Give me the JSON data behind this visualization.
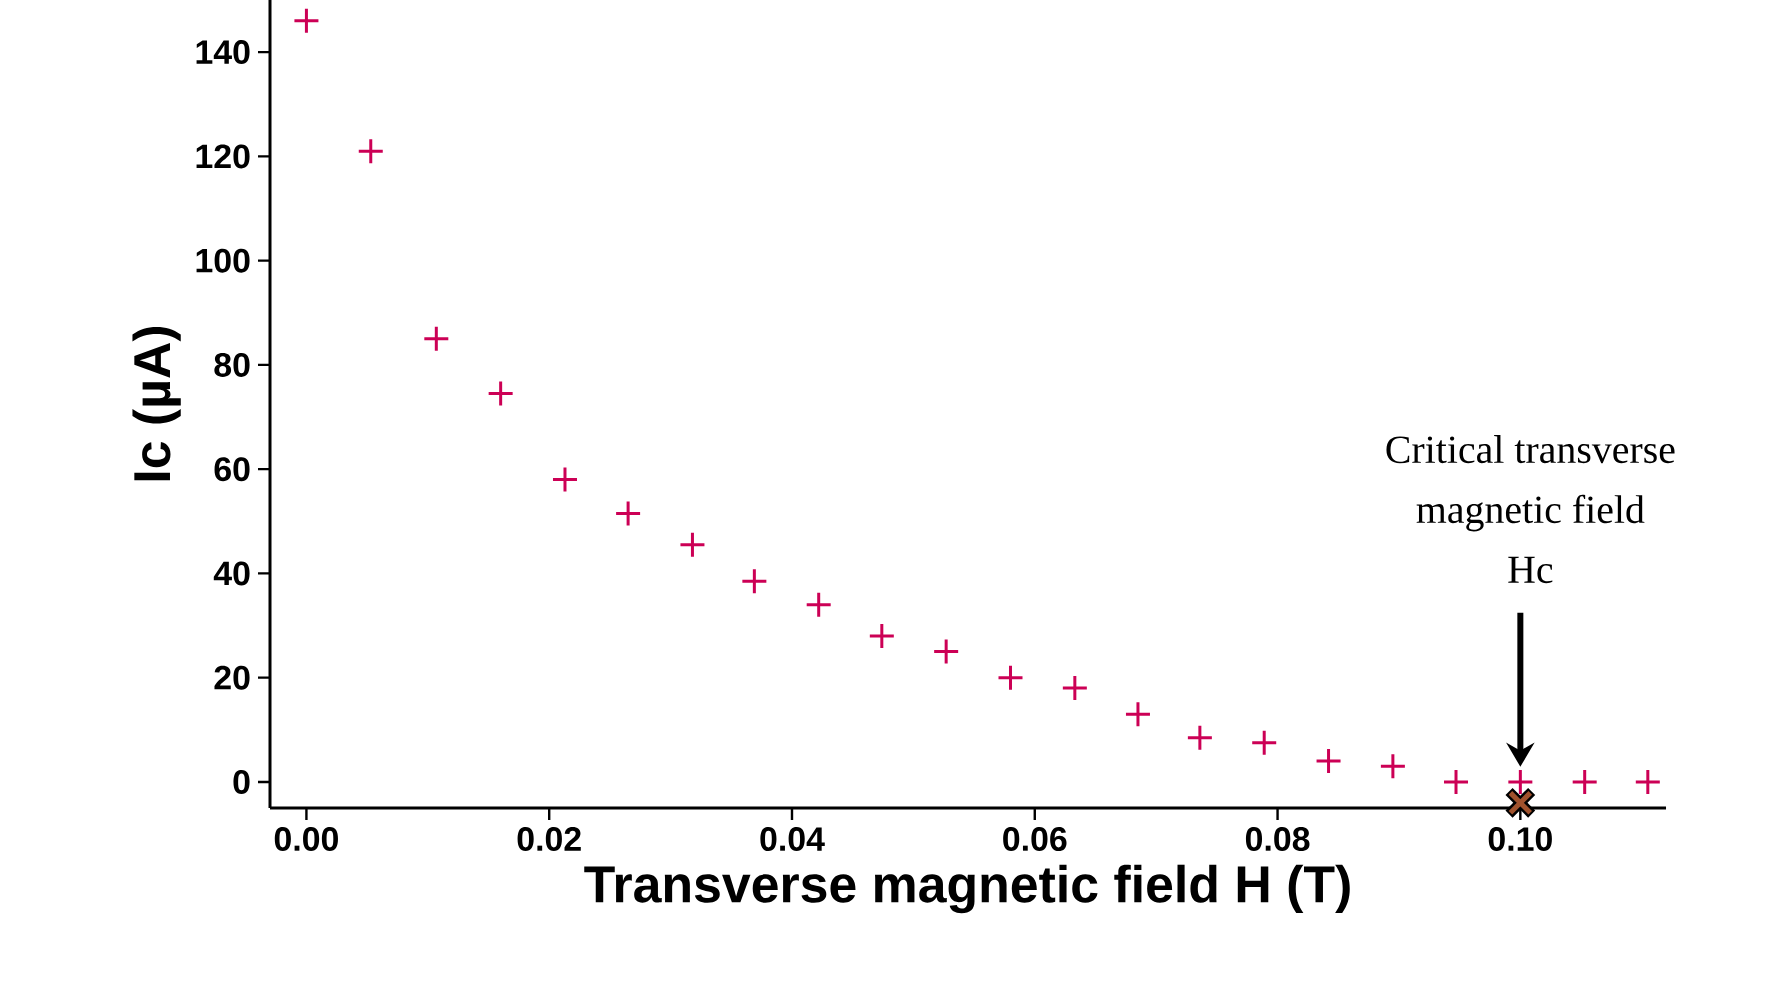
{
  "chart_data": {
    "type": "scatter",
    "xlabel": "Transverse magnetic field H (T)",
    "ylabel": "Ic (µA)",
    "xlim": [
      -0.003,
      0.112
    ],
    "ylim": [
      -5,
      150
    ],
    "xticks": [
      {
        "value": 0,
        "label": "0.00"
      },
      {
        "value": 0.02,
        "label": "0.02"
      },
      {
        "value": 0.04,
        "label": "0.04"
      },
      {
        "value": 0.06,
        "label": "0.06"
      },
      {
        "value": 0.08,
        "label": "0.08"
      },
      {
        "value": 0.1,
        "label": "0.10"
      }
    ],
    "yticks": [
      0,
      20,
      40,
      60,
      80,
      100,
      120,
      140
    ],
    "grid": false,
    "marker": "cross",
    "series": [
      {
        "color": "#cc0055",
        "x": [
          0.0,
          0.0053,
          0.0107,
          0.016,
          0.0213,
          0.0265,
          0.0318,
          0.0369,
          0.0422,
          0.0474,
          0.0527,
          0.058,
          0.0633,
          0.0685,
          0.0736,
          0.0789,
          0.0842,
          0.0895,
          0.0947,
          0.1,
          0.1053,
          0.1105
        ],
        "values": [
          146,
          121,
          85,
          74.5,
          58,
          51.5,
          45.5,
          38.5,
          34,
          28,
          25,
          20,
          18,
          13,
          8.5,
          7.5,
          4,
          3,
          0,
          0,
          0,
          0
        ]
      },
      {
        "color": "#a0522d",
        "marker": "x",
        "x": [
          0.1
        ],
        "values": [
          -4
        ]
      }
    ],
    "annotations": [
      "Critical transverse",
      "magnetic field",
      "Hc"
    ]
  }
}
